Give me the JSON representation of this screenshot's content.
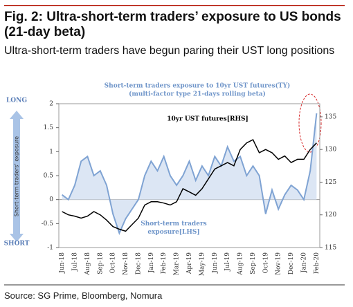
{
  "title": "Fig. 2: Ultra-short-term traders’ exposure to US bonds (21-day beta)",
  "subtitle": "Ultra-short-term traders have begun paring their UST long positions",
  "source": "Source: SG Prime, Bloomberg, Nomura",
  "chart_data": {
    "type": "line",
    "title": [
      "Short-term traders exposure to 10yr UST futures(TY)",
      "(multi-factor type 21-days rolling beta)"
    ],
    "y_label": "Short-term traders' exposure",
    "y_top_label": "LONG",
    "y_bottom_label": "SHORT",
    "categories": [
      "Jun-18",
      null,
      "Jul-18",
      null,
      "Aug-18",
      null,
      "Sep-18",
      null,
      "Oct-18",
      null,
      "Nov-18",
      null,
      "Dec-18",
      null,
      "Jan-19",
      null,
      "Feb-19",
      null,
      "Mar-19",
      null,
      "Apr-19",
      null,
      "May-19",
      null,
      "Jun-19",
      null,
      "Jul-19",
      null,
      "Aug-19",
      null,
      "Sep-19",
      null,
      "Oct-19",
      null,
      "Nov-19",
      null,
      "Dec-19",
      null,
      "Jan-20",
      null,
      "Feb-20"
    ],
    "series": [
      {
        "name": "Short-term traders exposure[LHS]",
        "color": "#7fa3d3",
        "fill": "#dce6f4",
        "values": [
          0.1,
          0.0,
          0.3,
          0.8,
          0.9,
          0.5,
          0.6,
          0.3,
          -0.3,
          -0.7,
          -0.4,
          -0.2,
          0.0,
          0.5,
          0.8,
          0.6,
          0.9,
          0.5,
          0.3,
          0.5,
          0.8,
          0.4,
          0.7,
          0.5,
          0.9,
          0.7,
          1.1,
          0.8,
          0.9,
          0.5,
          0.7,
          0.5,
          -0.3,
          0.2,
          -0.2,
          0.1,
          0.3,
          0.2,
          0.0,
          0.6,
          1.8
        ]
      },
      {
        "name": "10yr UST futures[RHS]",
        "color": "#000000",
        "axis": "y2",
        "values": [
          120.5,
          120,
          119.8,
          119.5,
          119.8,
          120.5,
          120,
          119.2,
          118.2,
          117.8,
          117.5,
          118.5,
          119.5,
          121.5,
          122,
          122,
          121.8,
          121.5,
          122,
          124,
          123.5,
          123,
          124,
          125.5,
          127,
          127.5,
          128,
          127.5,
          130,
          131,
          131.5,
          129.5,
          130,
          129.5,
          128.5,
          129,
          128,
          128.5,
          128.5,
          130,
          131
        ]
      }
    ],
    "ylim": [
      -1,
      2
    ],
    "yticks": [
      2,
      1.5,
      1,
      0.5,
      0,
      -0.5,
      -1
    ],
    "y2lim": [
      115,
      137
    ],
    "y2ticks": [
      135,
      130,
      125,
      120,
      115
    ]
  }
}
